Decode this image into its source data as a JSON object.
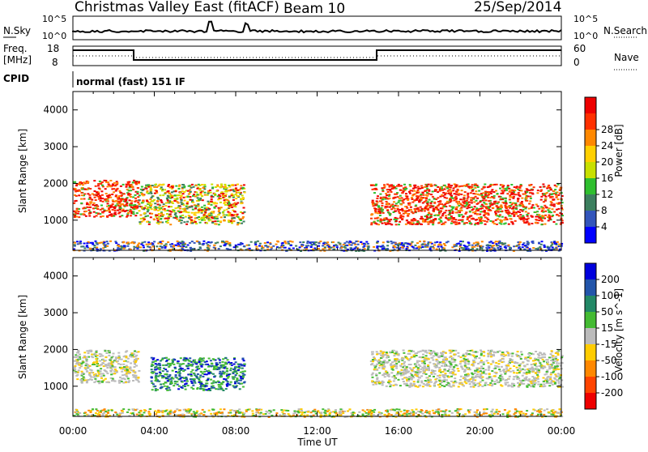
{
  "header": {
    "station": "Christmas Valley East (fitACF)",
    "beam": "Beam 10",
    "date": "25/Sep/2014"
  },
  "strip_panels": {
    "nsky": {
      "label": "N.Sky",
      "tick_top": "10^5",
      "tick_bottom": "10^0"
    },
    "nsearch": {
      "label": "N.Search",
      "tick_top": "10^5",
      "tick_bottom": "10^0"
    },
    "freq": {
      "label_line1": "Freq.",
      "label_line2": "[MHz]",
      "tick_top": "18",
      "tick_bottom": "8"
    },
    "nave": {
      "label": "Nave",
      "tick_top": "60",
      "tick_bottom": "0"
    },
    "cpid": {
      "label": "CPID",
      "value": "normal (fast) 151 IF"
    }
  },
  "chart_data": [
    {
      "type": "heatmap",
      "title": "",
      "xlabel": "",
      "ylabel": "Slant Range [km]",
      "xlim": [
        0,
        24
      ],
      "ylim": [
        180,
        4500
      ],
      "yticks": [
        "1000",
        "2000",
        "3000",
        "4000"
      ],
      "colorbar": {
        "label": "Power [dB]",
        "ticks": [
          "4",
          "8",
          "12",
          "16",
          "20",
          "24",
          "28"
        ],
        "colors": [
          "#0000ff",
          "#3355bb",
          "#3c7f5f",
          "#2fbf2f",
          "#c8e000",
          "#ffd000",
          "#ff8800",
          "#ff3000",
          "#ee0000"
        ]
      },
      "regions": [
        {
          "t": [
            0.0,
            3.2
          ],
          "range": [
            1100,
            2100
          ],
          "level": "high"
        },
        {
          "t": [
            3.2,
            8.4
          ],
          "range": [
            900,
            2000
          ],
          "level": "mixed"
        },
        {
          "t": [
            14.6,
            24.0
          ],
          "range": [
            900,
            2000
          ],
          "level": "high"
        },
        {
          "t": [
            0.0,
            24.0
          ],
          "range": [
            180,
            450
          ],
          "level": "low"
        }
      ]
    },
    {
      "type": "heatmap",
      "title": "",
      "xlabel": "Time UT",
      "ylabel": "Slant Range [km]",
      "xlim": [
        0,
        24
      ],
      "ylim": [
        180,
        4500
      ],
      "xticks": [
        "00:00",
        "04:00",
        "08:00",
        "12:00",
        "16:00",
        "20:00",
        "00:00"
      ],
      "yticks": [
        "1000",
        "2000",
        "3000",
        "4000"
      ],
      "colorbar": {
        "label": "Velocity [m s^-1]",
        "ticks": [
          "200",
          "100",
          "50",
          "15",
          "-15",
          "-50",
          "-100",
          "-200"
        ],
        "colors": [
          "#0000dd",
          "#2255aa",
          "#228866",
          "#44bb33",
          "#bbbbbb",
          "#ffcc00",
          "#ff8800",
          "#ff4400",
          "#ee0000"
        ]
      },
      "regions": [
        {
          "t": [
            0.0,
            3.2
          ],
          "range": [
            1100,
            2000
          ],
          "level": "ground"
        },
        {
          "t": [
            3.8,
            8.4
          ],
          "range": [
            900,
            1800
          ],
          "level": "positive"
        },
        {
          "t": [
            14.6,
            24.0
          ],
          "range": [
            1000,
            2000
          ],
          "level": "ground"
        },
        {
          "t": [
            0.0,
            24.0
          ],
          "range": [
            180,
            400
          ],
          "level": "negative"
        }
      ]
    }
  ]
}
